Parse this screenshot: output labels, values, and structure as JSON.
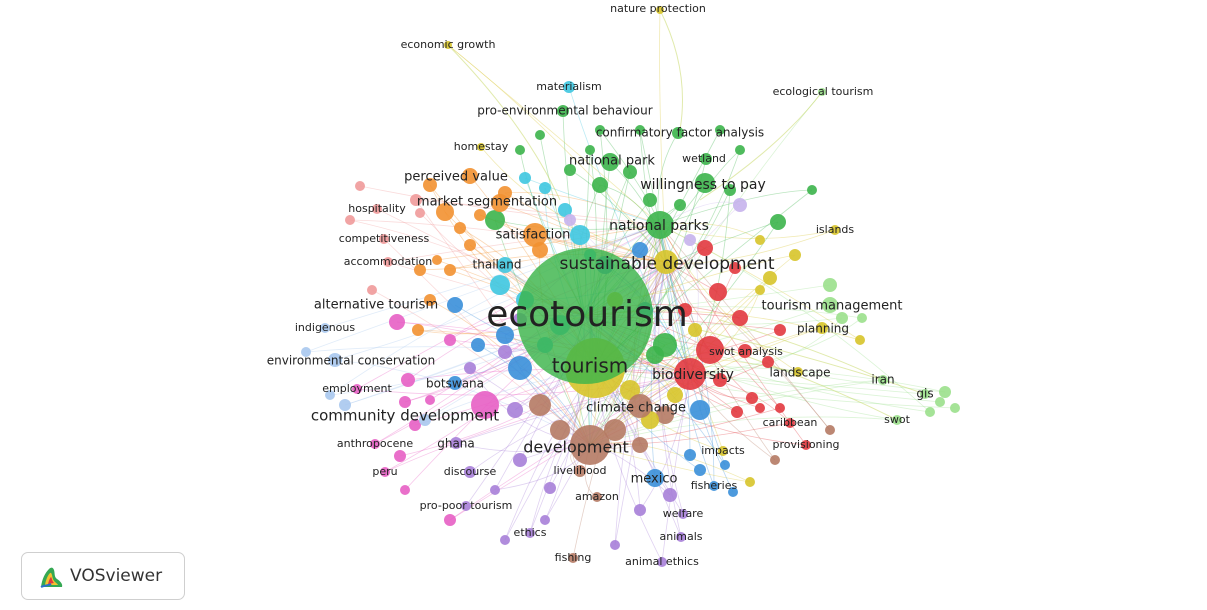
{
  "brand": {
    "name": "VOSviewer",
    "logo_icon": "vosviewer-logo-icon"
  },
  "clusters": {
    "red": "#e2393f",
    "green": "#3cb44b",
    "blue": "#3a8fd9",
    "yellow": "#d7c42a",
    "purple": "#a77fd8",
    "cyan": "#3ec7e0",
    "orange": "#f29131",
    "brown": "#b57a64",
    "pink": "#e75fc4",
    "salmon": "#f09a9a",
    "lightgreen": "#9be08c",
    "lightblue": "#a9c8ee",
    "lavender": "#c6b2ec"
  },
  "keywords": [
    {
      "label": "ecotourism",
      "cluster": "green"
    },
    {
      "label": "tourism",
      "cluster": "yellow"
    },
    {
      "label": "sustainable development",
      "cluster": "yellow"
    },
    {
      "label": "development",
      "cluster": "brown"
    },
    {
      "label": "community development",
      "cluster": "pink"
    },
    {
      "label": "biodiversity",
      "cluster": "red"
    },
    {
      "label": "climate change",
      "cluster": "brown"
    },
    {
      "label": "national parks",
      "cluster": "green"
    },
    {
      "label": "willingness to pay",
      "cluster": "green"
    },
    {
      "label": "satisfaction",
      "cluster": "orange"
    },
    {
      "label": "perceived value",
      "cluster": "orange"
    },
    {
      "label": "market segmentation",
      "cluster": "orange"
    },
    {
      "label": "national park",
      "cluster": "green"
    },
    {
      "label": "tourism management",
      "cluster": "lightgreen"
    },
    {
      "label": "alternative tourism",
      "cluster": "blue"
    },
    {
      "label": "environmental conservation",
      "cluster": "lightblue"
    },
    {
      "label": "mexico",
      "cluster": "blue"
    },
    {
      "label": "thailand",
      "cluster": "cyan"
    },
    {
      "label": "botswana",
      "cluster": "blue"
    },
    {
      "label": "planning",
      "cluster": "yellow"
    },
    {
      "label": "swot analysis",
      "cluster": "red"
    },
    {
      "label": "landscape",
      "cluster": "yellow"
    },
    {
      "label": "wetland",
      "cluster": "green"
    },
    {
      "label": "confirmatory factor analysis",
      "cluster": "green"
    },
    {
      "label": "pro-environmental behaviour",
      "cluster": "green"
    },
    {
      "label": "materialism",
      "cluster": "cyan"
    },
    {
      "label": "ecological tourism",
      "cluster": "lightgreen"
    },
    {
      "label": "nature protection",
      "cluster": "yellow"
    },
    {
      "label": "economic growth",
      "cluster": "yellow"
    },
    {
      "label": "homestay",
      "cluster": "yellow"
    },
    {
      "label": "hospitality",
      "cluster": "salmon"
    },
    {
      "label": "competitiveness",
      "cluster": "salmon"
    },
    {
      "label": "accommodation",
      "cluster": "salmon"
    },
    {
      "label": "indigenous",
      "cluster": "lightblue"
    },
    {
      "label": "employment",
      "cluster": "pink"
    },
    {
      "label": "anthropocene",
      "cluster": "pink"
    },
    {
      "label": "ghana",
      "cluster": "purple"
    },
    {
      "label": "peru",
      "cluster": "pink"
    },
    {
      "label": "discourse",
      "cluster": "purple"
    },
    {
      "label": "livelihood",
      "cluster": "brown"
    },
    {
      "label": "amazon",
      "cluster": "brown"
    },
    {
      "label": "pro-poor tourism",
      "cluster": "purple"
    },
    {
      "label": "ethics",
      "cluster": "purple"
    },
    {
      "label": "fishing",
      "cluster": "brown"
    },
    {
      "label": "animal ethics",
      "cluster": "purple"
    },
    {
      "label": "animals",
      "cluster": "purple"
    },
    {
      "label": "welfare",
      "cluster": "purple"
    },
    {
      "label": "fisheries",
      "cluster": "blue"
    },
    {
      "label": "impacts",
      "cluster": "yellow"
    },
    {
      "label": "provisioning",
      "cluster": "red"
    },
    {
      "label": "caribbean",
      "cluster": "red"
    },
    {
      "label": "iran",
      "cluster": "lightgreen"
    },
    {
      "label": "gis",
      "cluster": "lightgreen"
    },
    {
      "label": "swot",
      "cluster": "lightgreen"
    },
    {
      "label": "islands",
      "cluster": "yellow"
    }
  ]
}
